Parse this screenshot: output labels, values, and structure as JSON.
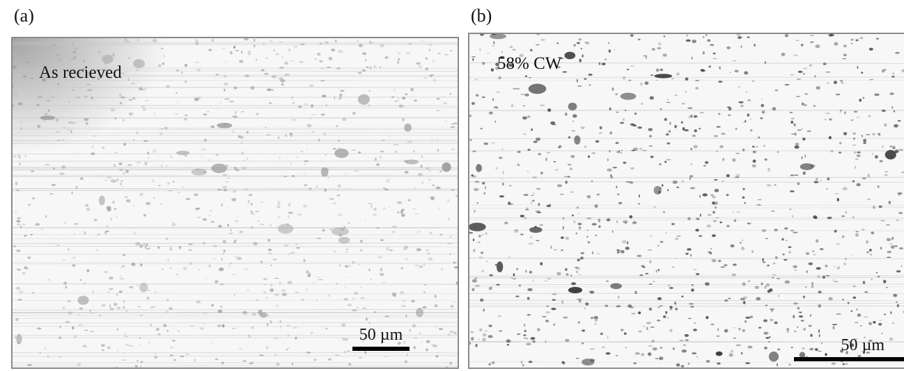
{
  "panels": [
    {
      "label": "(a)",
      "annotation": "As recieved",
      "scale_bar": "50 µm"
    },
    {
      "label": "(b)",
      "annotation": "58% CW",
      "scale_bar": "50 µm"
    }
  ],
  "colors": {
    "background": "#ffffff",
    "image_base": "#f7f7f7",
    "speckle_a": "#9a9a9a",
    "speckle_b": "#2a2a2a",
    "frame": "#8a8a8a"
  }
}
